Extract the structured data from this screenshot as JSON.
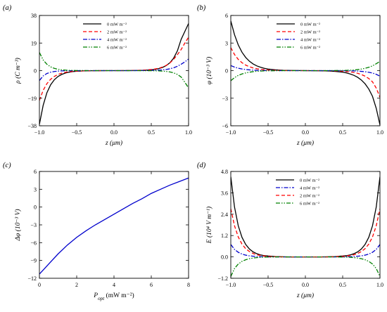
{
  "chart_data": [
    {
      "id": "a",
      "panel_label": "(a)",
      "type": "line",
      "xlabel": "z (μm)",
      "ylabel": "ρ (C m⁻³)",
      "xlim": [
        -1.0,
        1.0
      ],
      "ylim": [
        -38,
        38
      ],
      "xticks": [
        -1.0,
        -0.5,
        0.0,
        0.5,
        1.0
      ],
      "xtick_labels": [
        "−1.0",
        "−0.5",
        "0.0",
        "0.5",
        "1.0"
      ],
      "yticks": [
        -38,
        -19,
        0,
        19,
        38
      ],
      "ytick_labels": [
        "−38",
        "−19",
        "0",
        "19",
        "38"
      ],
      "legend_position": "top-center",
      "x": [
        -1.0,
        -0.95,
        -0.9,
        -0.85,
        -0.8,
        -0.75,
        -0.7,
        -0.65,
        -0.6,
        -0.55,
        -0.5,
        -0.4,
        -0.3,
        -0.2,
        -0.1,
        0.0,
        0.1,
        0.2,
        0.3,
        0.4,
        0.5,
        0.55,
        0.6,
        0.65,
        0.7,
        0.75,
        0.8,
        0.85,
        0.9,
        0.95,
        1.0
      ],
      "series": [
        {
          "name": "0 mW m⁻²",
          "color": "#000000",
          "dash": "solid",
          "values": [
            -37,
            -24,
            -15.3,
            -9.8,
            -6.3,
            -4.0,
            -2.6,
            -1.65,
            -1.05,
            -0.68,
            -0.43,
            -0.18,
            -0.07,
            -0.03,
            -0.01,
            0,
            0.01,
            0.03,
            0.09,
            0.22,
            0.55,
            0.87,
            1.38,
            2.18,
            3.45,
            5.45,
            8.6,
            13.6,
            21.5,
            27.0,
            32.5
          ]
        },
        {
          "name": "2 mW m⁻²",
          "color": "#ff0000",
          "dash": "dashed",
          "values": [
            -20.5,
            -13.6,
            -9.0,
            -6.0,
            -4.0,
            -2.6,
            -1.75,
            -1.15,
            -0.77,
            -0.51,
            -0.34,
            -0.15,
            -0.06,
            -0.02,
            0,
            0,
            0.02,
            0.07,
            0.17,
            0.36,
            0.76,
            1.12,
            1.66,
            2.45,
            3.6,
            5.3,
            7.8,
            11.0,
            14.5,
            19.0,
            23.0
          ]
        },
        {
          "name": "4 mW m⁻²",
          "color": "#0000cc",
          "dash": "dashdot",
          "values": [
            -6.8,
            -3.7,
            -2.0,
            -1.1,
            -0.6,
            -0.33,
            -0.18,
            -0.1,
            -0.05,
            -0.03,
            -0.02,
            -0.01,
            0,
            0,
            0,
            0,
            0,
            0.01,
            0.03,
            0.06,
            0.13,
            0.2,
            0.32,
            0.5,
            0.8,
            1.25,
            1.95,
            3.0,
            4.4,
            6.0,
            8.0
          ]
        },
        {
          "name": "6 mW m⁻²",
          "color": "#008000",
          "dash": "dashdotdot",
          "values": [
            12.5,
            7.4,
            4.4,
            2.6,
            1.55,
            0.92,
            0.55,
            0.33,
            0.2,
            0.12,
            0.07,
            0.03,
            0.01,
            0,
            0,
            0,
            0,
            0,
            -0.01,
            -0.03,
            -0.07,
            -0.12,
            -0.2,
            -0.33,
            -0.55,
            -0.92,
            -1.55,
            -2.6,
            -4.4,
            -8.0,
            -12.0
          ]
        }
      ]
    },
    {
      "id": "b",
      "panel_label": "(b)",
      "type": "line",
      "xlabel": "z (μm)",
      "ylabel": "φ (10⁻³ V)",
      "xlim": [
        -1.0,
        1.0
      ],
      "ylim": [
        -6,
        6
      ],
      "xticks": [
        -1.0,
        -0.5,
        0.0,
        0.5,
        1.0
      ],
      "xtick_labels": [
        "−1.0",
        "−0.5",
        "0.0",
        "0.5",
        "1.0"
      ],
      "yticks": [
        -6,
        -3,
        0,
        3,
        6
      ],
      "ytick_labels": [
        "−6",
        "−3",
        "0",
        "3",
        "6"
      ],
      "legend_position": "top-right",
      "x": [
        -1.0,
        -0.95,
        -0.9,
        -0.85,
        -0.8,
        -0.75,
        -0.7,
        -0.65,
        -0.6,
        -0.55,
        -0.5,
        -0.4,
        -0.3,
        -0.2,
        -0.1,
        0.0,
        0.1,
        0.2,
        0.3,
        0.4,
        0.5,
        0.55,
        0.6,
        0.65,
        0.7,
        0.75,
        0.8,
        0.85,
        0.9,
        0.95,
        1.0
      ],
      "series": [
        {
          "name": "0 mW m⁻²",
          "color": "#000000",
          "dash": "solid",
          "values": [
            5.4,
            3.9,
            2.8,
            2.0,
            1.43,
            1.02,
            0.72,
            0.51,
            0.36,
            0.25,
            0.17,
            0.08,
            0.04,
            0.02,
            0.01,
            0,
            -0.01,
            -0.02,
            -0.04,
            -0.08,
            -0.17,
            -0.25,
            -0.36,
            -0.51,
            -0.72,
            -1.02,
            -1.43,
            -2.0,
            -2.8,
            -4.1,
            -5.9
          ]
        },
        {
          "name": "2 mW m⁻²",
          "color": "#ff0000",
          "dash": "dashed",
          "values": [
            2.5,
            1.75,
            1.22,
            0.86,
            0.6,
            0.42,
            0.29,
            0.2,
            0.14,
            0.1,
            0.07,
            0.03,
            0.01,
            0,
            0,
            0,
            0,
            0,
            -0.01,
            -0.03,
            -0.07,
            -0.1,
            -0.14,
            -0.2,
            -0.29,
            -0.42,
            -0.6,
            -0.86,
            -1.22,
            -1.9,
            -2.9
          ]
        },
        {
          "name": "4 mW m⁻²",
          "color": "#0000cc",
          "dash": "dashdot",
          "values": [
            0.55,
            0.38,
            0.26,
            0.18,
            0.12,
            0.08,
            0.05,
            0.03,
            0.02,
            0.01,
            0.01,
            0,
            0,
            0,
            0,
            0,
            0,
            0,
            0,
            0,
            -0.01,
            -0.01,
            -0.02,
            -0.03,
            -0.05,
            -0.08,
            -0.12,
            -0.18,
            -0.26,
            -0.4,
            -0.6
          ]
        },
        {
          "name": "6 mW m⁻²",
          "color": "#008000",
          "dash": "dashdotdot",
          "values": [
            -1.1,
            -0.76,
            -0.52,
            -0.36,
            -0.25,
            -0.17,
            -0.11,
            -0.07,
            -0.05,
            -0.03,
            -0.02,
            -0.01,
            0,
            0,
            0,
            0,
            0,
            0,
            0,
            0.01,
            0.02,
            0.03,
            0.05,
            0.07,
            0.11,
            0.17,
            0.25,
            0.36,
            0.52,
            0.75,
            1.0
          ]
        }
      ]
    },
    {
      "id": "c",
      "panel_label": "(c)",
      "type": "line",
      "xlabel": "P_opt (mW m⁻²)",
      "ylabel": "Δφ (10⁻³ V)",
      "xlim": [
        0,
        8
      ],
      "ylim": [
        -12,
        6
      ],
      "xticks": [
        0,
        2,
        4,
        6,
        8
      ],
      "xtick_labels": [
        "0",
        "2",
        "4",
        "6",
        "8"
      ],
      "yticks": [
        -12,
        -9,
        -6,
        -3,
        0,
        3,
        6
      ],
      "ytick_labels": [
        "−12",
        "−9",
        "−6",
        "−3",
        "0",
        "3",
        "6"
      ],
      "x": [
        0,
        0.5,
        1,
        1.5,
        2,
        2.5,
        3,
        3.5,
        4,
        4.5,
        5,
        5.5,
        6,
        6.5,
        7,
        7.5,
        8
      ],
      "series": [
        {
          "name": "",
          "color": "#0000cc",
          "dash": "solid",
          "values": [
            -11.3,
            -9.6,
            -7.9,
            -6.4,
            -5.1,
            -4.0,
            -3.0,
            -2.1,
            -1.2,
            -0.3,
            0.6,
            1.4,
            2.3,
            3.0,
            3.7,
            4.3,
            4.9
          ]
        }
      ]
    },
    {
      "id": "d",
      "panel_label": "(d)",
      "type": "line",
      "xlabel": "z (μm)",
      "ylabel": "E (10⁴ V m⁻¹)",
      "xlim": [
        -1.0,
        1.0
      ],
      "ylim": [
        -1.2,
        4.8
      ],
      "xticks": [
        -1.0,
        -0.5,
        0.0,
        0.5,
        1.0
      ],
      "xtick_labels": [
        "−1.0",
        "−0.5",
        "0.0",
        "0.5",
        "1.0"
      ],
      "yticks": [
        -1.2,
        0.0,
        1.2,
        2.4,
        3.6,
        4.8
      ],
      "ytick_labels": [
        "−1.2",
        "0.0",
        "1.2",
        "2.4",
        "3.6",
        "4.8"
      ],
      "legend_position": "top-center",
      "x": [
        -1.0,
        -0.95,
        -0.9,
        -0.85,
        -0.8,
        -0.75,
        -0.7,
        -0.65,
        -0.6,
        -0.55,
        -0.5,
        -0.4,
        -0.3,
        -0.2,
        -0.1,
        0.0,
        0.1,
        0.2,
        0.3,
        0.4,
        0.5,
        0.55,
        0.6,
        0.65,
        0.7,
        0.75,
        0.8,
        0.85,
        0.9,
        0.95,
        1.0
      ],
      "series": [
        {
          "name": "0 mW m⁻²",
          "color": "#000000",
          "dash": "solid",
          "values": [
            4.5,
            2.8,
            1.75,
            1.1,
            0.7,
            0.44,
            0.28,
            0.18,
            0.11,
            0.07,
            0.05,
            0.02,
            0.01,
            0,
            0,
            0,
            0,
            0,
            0.01,
            0.02,
            0.05,
            0.07,
            0.11,
            0.18,
            0.28,
            0.44,
            0.7,
            1.1,
            1.75,
            2.8,
            4.5
          ]
        },
        {
          "name": "4 mW m⁻²",
          "color": "#0000cc",
          "dash": "dashdot",
          "values": [
            0.7,
            0.42,
            0.26,
            0.16,
            0.1,
            0.06,
            0.04,
            0.02,
            0.01,
            0.01,
            0,
            0,
            0,
            0,
            0,
            0,
            0,
            0,
            0,
            0,
            0,
            0.01,
            0.01,
            0.02,
            0.04,
            0.06,
            0.1,
            0.16,
            0.26,
            0.42,
            0.7
          ]
        },
        {
          "name": "2 mW m⁻²",
          "color": "#ff0000",
          "dash": "dashed",
          "values": [
            2.7,
            1.75,
            1.12,
            0.72,
            0.46,
            0.3,
            0.19,
            0.12,
            0.08,
            0.05,
            0.03,
            0.01,
            0,
            0,
            0,
            0,
            0,
            0,
            0,
            0.01,
            0.03,
            0.05,
            0.08,
            0.12,
            0.19,
            0.3,
            0.46,
            0.72,
            1.12,
            1.75,
            2.7
          ]
        },
        {
          "name": "6 mW m⁻²",
          "color": "#008000",
          "dash": "dashdotdot",
          "values": [
            -1.1,
            -0.65,
            -0.4,
            -0.25,
            -0.16,
            -0.1,
            -0.06,
            -0.04,
            -0.02,
            -0.01,
            -0.01,
            0,
            0,
            0,
            0,
            0,
            0,
            0,
            0,
            0,
            -0.01,
            -0.01,
            -0.02,
            -0.04,
            -0.06,
            -0.1,
            -0.16,
            -0.25,
            -0.4,
            -0.65,
            -1.1
          ]
        }
      ]
    }
  ]
}
